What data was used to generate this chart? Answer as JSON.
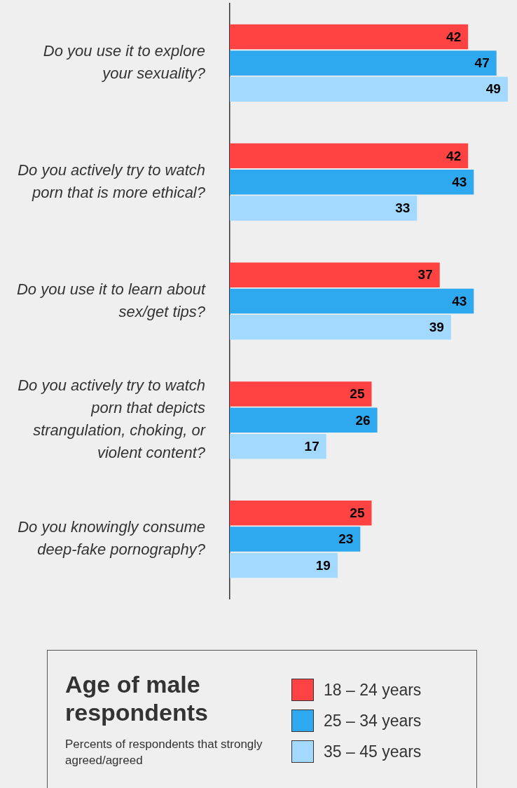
{
  "chart_data": {
    "type": "bar",
    "orientation": "horizontal",
    "categories": [
      "Do you use it to explore your sexuality?",
      "Do you actively try to watch porn that is more ethical?",
      "Do you use it to learn about sex/get tips?",
      "Do you actively try to watch porn that depicts strangulation, choking, or violent content?",
      "Do you knowingly consume deep-fake pornography?"
    ],
    "series": [
      {
        "name": "18 – 24 years",
        "color": "#ff4242",
        "values": [
          42,
          42,
          37,
          25,
          25
        ]
      },
      {
        "name": "25 – 34 years",
        "color": "#2ea8ef",
        "values": [
          47,
          43,
          43,
          26,
          23
        ]
      },
      {
        "name": "35 – 45 years",
        "color": "#a3d9ff",
        "values": [
          49,
          33,
          39,
          17,
          19
        ]
      }
    ],
    "data_labels": true,
    "grid": false,
    "legend": "bottom",
    "legend_title": "Age of male respondents",
    "annotations": [
      "Percents of respondents that strongly agreed/agreed"
    ]
  }
}
